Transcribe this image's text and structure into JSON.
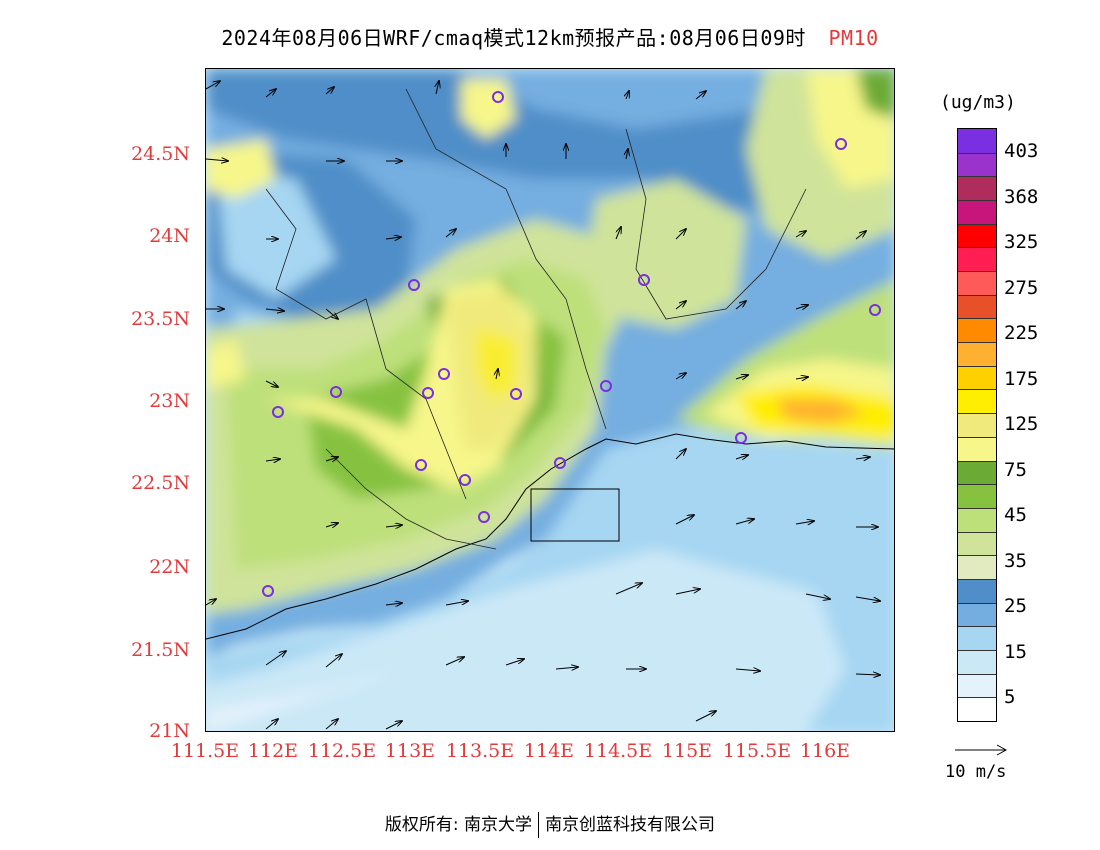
{
  "title": {
    "main": "2024年08月06日WRF/cmaq模式12km预报产品:08月06日09时",
    "pollutant": "PM10"
  },
  "axes": {
    "lat_labels": [
      "24.5N",
      "24N",
      "23.5N",
      "23N",
      "22.5N",
      "22N",
      "21.5N",
      "21N"
    ],
    "lon_labels": [
      "111.5E",
      "112E",
      "112.5E",
      "113E",
      "113.5E",
      "114E",
      "114.5E",
      "115E",
      "115.5E",
      "116E"
    ]
  },
  "colorbar": {
    "unit": "(ug/m3)",
    "labels": [
      "403",
      "368",
      "325",
      "275",
      "225",
      "175",
      "125",
      "75",
      "45",
      "35",
      "25",
      "15",
      "5"
    ],
    "colors": [
      "#7a2fe0",
      "#9a33cc",
      "#b02c5c",
      "#c8157c",
      "#ff0000",
      "#ff1e52",
      "#ff5a5a",
      "#e8502a",
      "#ff8a00",
      "#ffb030",
      "#ffd000",
      "#ffee00",
      "#f0ea7c",
      "#f6f68a",
      "#6aaa35",
      "#86c23f",
      "#bee07a",
      "#cfe39a",
      "#e2eac0",
      "#4f8ec8",
      "#74aee0",
      "#a6d6f2",
      "#cbe8f7",
      "#e3f2fb",
      "#ffffff"
    ]
  },
  "wind_reference": {
    "label": "10 m/s"
  },
  "footer": {
    "copyright": "版权所有: 南京大学",
    "company": "南京创蓝科技有限公司"
  }
}
